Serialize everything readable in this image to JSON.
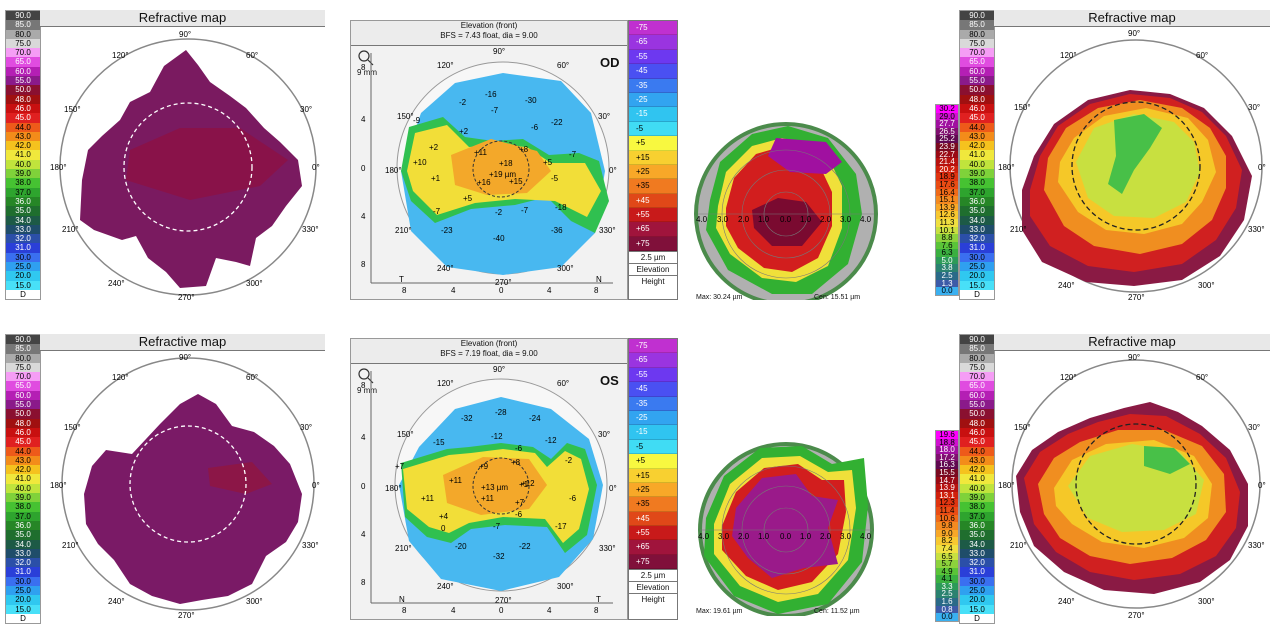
{
  "refractive_scale": [
    "90.0",
    "85.0",
    "80.0",
    "75.0",
    "70.0",
    "65.0",
    "60.0",
    "55.0",
    "50.0",
    "48.0",
    "46.0",
    "45.0",
    "44.0",
    "43.0",
    "42.0",
    "41.0",
    "40.0",
    "39.0",
    "38.0",
    "37.0",
    "36.0",
    "35.0",
    "34.0",
    "33.0",
    "32.0",
    "31.0",
    "30.0",
    "25.0",
    "20.0",
    "15.0",
    "D"
  ],
  "refractive_colors": [
    "#444444",
    "#777777",
    "#aaaaaa",
    "#d9d9d9",
    "#f59df5",
    "#e04ce0",
    "#b41fb4",
    "#8a1a8a",
    "#8a1030",
    "#a01010",
    "#c81010",
    "#e02020",
    "#ee5a1a",
    "#f38c1a",
    "#f5c21e",
    "#f0e83c",
    "#c0e43c",
    "#7fd23a",
    "#46c232",
    "#2ea42e",
    "#268626",
    "#1f6e2e",
    "#1d5a46",
    "#1f4d6a",
    "#2b4fa8",
    "#2a3fd8",
    "#3a6ff0",
    "#2fa0f0",
    "#30c8f0",
    "#48e0f8",
    "#ffffff"
  ],
  "refractive": {
    "title": "Refractive map",
    "angles": {
      "deg90": "90°",
      "deg120": "120°",
      "deg60": "60°",
      "deg150": "150°",
      "deg30": "30°",
      "deg180": "180°",
      "deg0": "0°",
      "deg210": "210°",
      "deg330": "330°",
      "deg240": "240°",
      "deg300": "300°",
      "deg270": "270°"
    }
  },
  "elevation": {
    "title": "Elevation (front)",
    "od": {
      "bfs": "BFS = 7.43 float, dia = 9.00",
      "eye": "OD",
      "zoom": "9 mm",
      "center": "+19 µm",
      "left": "T",
      "right": "N",
      "values": [
        "-16",
        "-30",
        "-2",
        "-7",
        "-9",
        "-6",
        "-22",
        "+2",
        "-7",
        "+2",
        "+11",
        "+8",
        "+10",
        "+18",
        "+5",
        "+1",
        "+16",
        "+15",
        "-5",
        "+5",
        "-7",
        "-2",
        "-18",
        "-7",
        "-23",
        "-36",
        "-40"
      ]
    },
    "os": {
      "bfs": "BFS = 7.19 float, dia = 9.00",
      "eye": "OS",
      "zoom": "9 mm",
      "center": "+13 µm",
      "left": "N",
      "right": "T",
      "values": [
        "-28",
        "-32",
        "-24",
        "-15",
        "-12",
        "-12",
        "-6",
        "-2",
        "+7",
        "+9",
        "+8",
        "+11",
        "+12",
        "+11",
        "+11",
        "+7",
        "+1",
        "-6",
        "+4",
        "-6",
        "-17",
        "0",
        "-7",
        "-20",
        "-22",
        "-32"
      ]
    },
    "axis": {
      "y8top": "8",
      "y4top": "4",
      "y0": "0",
      "y4bot": "4",
      "y8bot": "8",
      "x8l": "8",
      "x4l": "4",
      "x0": "0",
      "x4r": "4",
      "x8r": "8",
      "deg90": "90°",
      "deg120": "120°",
      "deg60": "60°",
      "deg150": "150°",
      "deg30": "30°",
      "deg180": "180°",
      "deg0": "0°",
      "deg210": "210°",
      "deg330": "330°",
      "deg240": "240°",
      "deg300": "300°",
      "deg270": "270°"
    },
    "bar_labels": [
      "-75",
      "-65",
      "-55",
      "-45",
      "-35",
      "-25",
      "-15",
      "-5",
      "+5",
      "+15",
      "+25",
      "+35",
      "+45",
      "+55",
      "+65",
      "+75"
    ],
    "bar_colors": [
      "#c030d0",
      "#9a34e0",
      "#6d38f0",
      "#4a50f2",
      "#3a7af0",
      "#32a4f0",
      "#30c4f0",
      "#40dcf4",
      "#f8f840",
      "#f8d030",
      "#f8a828",
      "#f07a20",
      "#e04818",
      "#c81a1a",
      "#a0143c",
      "#80103a"
    ],
    "bar_step": "2.5 µm",
    "bar_mode": "Elevation",
    "bar_type": "Height"
  },
  "thickness": {
    "od": {
      "max": "Max: 30.24 µm",
      "cen": "Cen: 15.51 µm"
    },
    "os": {
      "max": "Max: 19.61 µm",
      "cen": "Cen: 11.52 µm"
    },
    "rings": {
      "r4l": "4.0",
      "r3l": "3.0",
      "r2l": "2.0",
      "r1l": "1.0",
      "r0": "0.0",
      "r1r": "1.0",
      "r2r": "2.0",
      "r3r": "3.0",
      "r4r": "4.0"
    },
    "scale_od": [
      "30.2",
      "29.0",
      "27.7",
      "26.5",
      "25.2",
      "23.9",
      "22.7",
      "21.4",
      "20.2",
      "18.9",
      "17.6",
      "16.4",
      "15.1",
      "13.9",
      "12.6",
      "11.3",
      "10.1",
      "8.8",
      "7.6",
      "6.3",
      "5.0",
      "3.8",
      "2.5",
      "1.3",
      "0.0"
    ],
    "scale_os": [
      "19.6",
      "18.8",
      "18.0",
      "17.2",
      "16.3",
      "15.5",
      "14.7",
      "13.9",
      "13.1",
      "12.3",
      "11.4",
      "10.6",
      "9.8",
      "9.0",
      "8.2",
      "7.4",
      "6.5",
      "5.7",
      "4.9",
      "4.1",
      "3.3",
      "2.5",
      "1.6",
      "0.8",
      "0.0"
    ],
    "scale_colors": [
      "#ff00ff",
      "#d010d0",
      "#a010a0",
      "#801070",
      "#600850",
      "#7a0a20",
      "#9a0a14",
      "#b8120e",
      "#d0200c",
      "#e03410",
      "#ea4c14",
      "#f06a18",
      "#f48a20",
      "#f8a828",
      "#f8c830",
      "#f0e040",
      "#c8e040",
      "#8cd23c",
      "#5ac438",
      "#3ab040",
      "#2c9a58",
      "#2a8270",
      "#2a6a88",
      "#3c5aa8",
      "#3ab0f0"
    ]
  }
}
